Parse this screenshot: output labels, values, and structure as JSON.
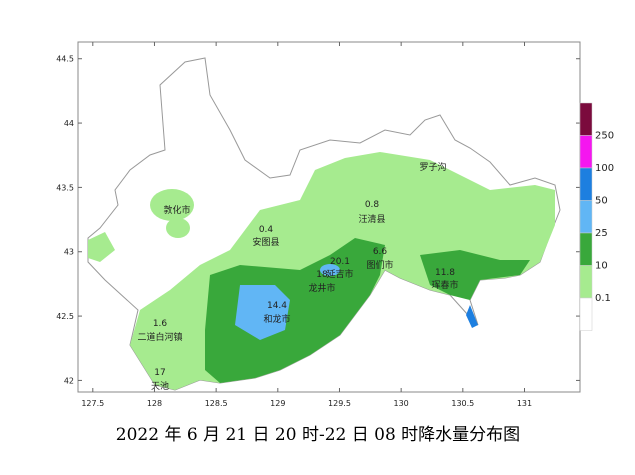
{
  "map": {
    "caption": "2022 年 6 月 21 日 20 时-22 日 08 时降水量分布图",
    "xlim": [
      127.38,
      131.45
    ],
    "ylim": [
      41.91,
      44.63
    ],
    "xticks": [
      127.5,
      128,
      128.5,
      129,
      129.5,
      130,
      130.5,
      131
    ],
    "yticks": [
      42,
      42.5,
      43,
      43.5,
      44,
      44.5
    ],
    "legend": {
      "levels": [
        250,
        100,
        50,
        25,
        10,
        0.1
      ],
      "colors": [
        "#7b0a3d",
        "#f516f0",
        "#1d7fe0",
        "#61b6f5",
        "#39a83b",
        "#a6eb8f",
        "#ffffff"
      ]
    },
    "places": [
      {
        "name": "罗子沟"
      },
      {
        "value": "0.8",
        "name": "汪清县"
      },
      {
        "name": "敦化市"
      },
      {
        "value": "0.4",
        "name": "安图县"
      },
      {
        "value": "20.1",
        "name": "延吉市"
      },
      {
        "value": "18",
        "name": "龙井市"
      },
      {
        "value": "6.6",
        "name": "图们市"
      },
      {
        "value": "11.8",
        "name": "珲春市"
      },
      {
        "value": "14.4",
        "name": "和龙市"
      },
      {
        "value": "1.6",
        "name": "二道白河镇"
      },
      {
        "value": "17",
        "name": "天池"
      }
    ]
  }
}
